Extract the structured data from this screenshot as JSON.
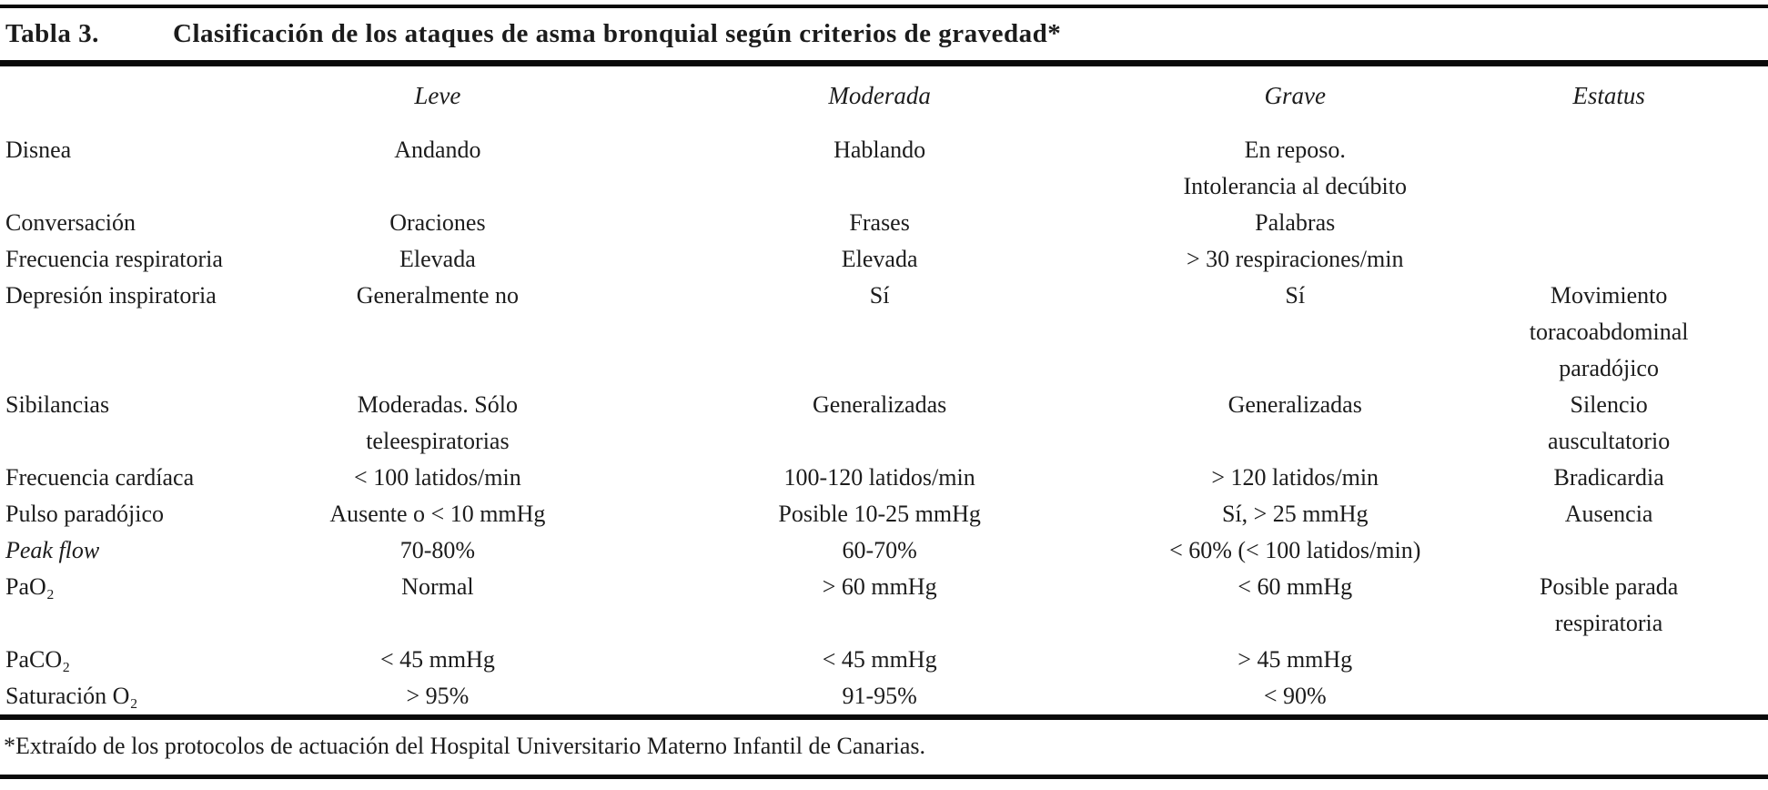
{
  "page": {
    "title_label": "Tabla 3.",
    "title_text": "Clasificación de los ataques de asma bronquial según criterios de gravedad*",
    "footnote": "*Extraído de los protocolos de actuación del Hospital Universitario Materno Infantil de Canarias."
  },
  "colors": {
    "background": "#ffffff",
    "ink": "#1c1c1c",
    "rule": "#0a0a0a"
  },
  "table": {
    "headers": [
      "",
      "Leve",
      "Moderada",
      "Grave",
      "Estatus"
    ],
    "rows": [
      {
        "label": "Disnea",
        "cells": [
          "Andando",
          "Hablando",
          "En reposo.\nIntolerancia al decúbito",
          ""
        ]
      },
      {
        "label": "Conversación",
        "cells": [
          "Oraciones",
          "Frases",
          "Palabras",
          ""
        ]
      },
      {
        "label": "Frecuencia respiratoria",
        "cells": [
          "Elevada",
          "Elevada",
          "> 30 respiraciones/min",
          ""
        ]
      },
      {
        "label": "Depresión inspiratoria",
        "cells": [
          "Generalmente no",
          "Sí",
          "Sí",
          "Movimiento\ntoracoabdominal\nparadójico"
        ]
      },
      {
        "label": "Sibilancias",
        "cells": [
          "Moderadas. Sólo\nteleespiratorias",
          "Generalizadas",
          "Generalizadas",
          "Silencio\nauscultatorio"
        ]
      },
      {
        "label": "Frecuencia cardíaca",
        "cells": [
          "< 100 latidos/min",
          "100-120 latidos/min",
          "> 120 latidos/min",
          "Bradicardia"
        ]
      },
      {
        "label": "Pulso paradójico",
        "cells": [
          "Ausente o < 10 mmHg",
          "Posible 10-25 mmHg",
          "Sí, > 25 mmHg",
          "Ausencia"
        ]
      },
      {
        "label": "Peak flow",
        "cells": [
          "70-80%",
          "60-70%",
          "< 60% (< 100 latidos/min)",
          ""
        ]
      },
      {
        "label": "PaO₂",
        "cells": [
          "Normal",
          "> 60 mmHg",
          "< 60 mmHg",
          "Posible parada\nrespiratoria"
        ]
      },
      {
        "label": "PaCO₂",
        "cells": [
          "< 45 mmHg",
          "< 45 mmHg",
          "> 45 mmHg",
          ""
        ]
      },
      {
        "label": "Saturación O₂",
        "cells": [
          "> 95%",
          "91-95%",
          "< 90%",
          ""
        ]
      }
    ]
  }
}
